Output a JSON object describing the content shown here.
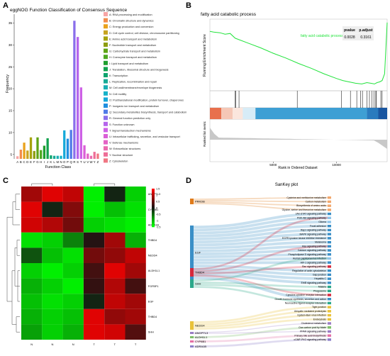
{
  "panels": {
    "A": {
      "letter": "A",
      "title": "eggNOG Function Classification of Consensus Sequence",
      "xlabel": "Function Class",
      "ylabel": "Frequency"
    },
    "B": {
      "letter": "B",
      "title": "fatty acid catabolic process",
      "ylabel_top": "Running Enrichment Score",
      "ylabel_bottom": "Ranked list metric",
      "xlabel": "Rank in Ordered Dataset",
      "legend_label": "fatty acid catabolic process",
      "table_header": [
        "pvalue",
        "p.adjust"
      ],
      "table_values": [
        "0.0028",
        "0.3161"
      ]
    },
    "C": {
      "letter": "C"
    },
    "D": {
      "letter": "D",
      "title": "SanKey plot"
    }
  },
  "chart_data": [
    {
      "panel": "A",
      "type": "bar",
      "title": "eggNOG Function Classification of Consensus Sequence",
      "xlabel": "Function Class",
      "ylabel": "Frequency",
      "ylim": [
        4,
        37
      ],
      "yticks": [
        5,
        10,
        15,
        20,
        25,
        30,
        35
      ],
      "categories": [
        "A",
        "B",
        "C",
        "D",
        "E",
        "F",
        "G",
        "H",
        "I",
        "J",
        "K",
        "L",
        "M",
        "N",
        "O",
        "P",
        "Q",
        "R",
        "S",
        "T",
        "U",
        "V",
        "W",
        "Y",
        "Z"
      ],
      "values": [
        4.6,
        6.1,
        7.7,
        5.9,
        8.9,
        5.8,
        8.9,
        6.0,
        7.0,
        8.7,
        4.8,
        4.7,
        4.7,
        4.7,
        10.5,
        8.6,
        10.6,
        35.5,
        31.8,
        20.3,
        7.1,
        5.2,
        4.7,
        5.6,
        5.2
      ],
      "colors": [
        "#F7A5A5",
        "#F28C4B",
        "#E9A21C",
        "#C7A420",
        "#A6A30D",
        "#8E9D10",
        "#5FA415",
        "#4EA821",
        "#1E9E2E",
        "#12A24E",
        "#0EA46E",
        "#17AA95",
        "#19AFB3",
        "#17B2C9",
        "#16A9D9",
        "#1F8FE0",
        "#4F7BE7",
        "#8A6FEB",
        "#B565EC",
        "#CE60E6",
        "#DA5FD7",
        "#E463C6",
        "#EA6AAE",
        "#EE6E97",
        "#F07683"
      ],
      "legend": [
        {
          "letter": "A",
          "label": "A: RNA processing and modification"
        },
        {
          "letter": "B",
          "label": "B: Chromatin structure and dynamics"
        },
        {
          "letter": "C",
          "label": "C: Energy production and conversion"
        },
        {
          "letter": "D",
          "label": "D: Cell cycle control, cell division, chromosome partitioning"
        },
        {
          "letter": "E",
          "label": "E: Amino acid transport and metabolism"
        },
        {
          "letter": "F",
          "label": "F: Nucleotide transport and metabolism"
        },
        {
          "letter": "G",
          "label": "G: Carbohydrate transport and metabolism"
        },
        {
          "letter": "H",
          "label": "H: Coenzyme transport and metabolism"
        },
        {
          "letter": "I",
          "label": "I: Lipid transport and metabolism"
        },
        {
          "letter": "J",
          "label": "J: Translation, ribosomal structure and biogenesis"
        },
        {
          "letter": "K",
          "label": "K: Transcription"
        },
        {
          "letter": "L",
          "label": "L: Replication, recombination and repair"
        },
        {
          "letter": "M",
          "label": "M: Cell wall/membrane/envelope biogenesis"
        },
        {
          "letter": "N",
          "label": "N: Cell motility"
        },
        {
          "letter": "O",
          "label": "O: Posttranslational modification, protein turnover, chaperones"
        },
        {
          "letter": "P",
          "label": "P: Inorganic ion transport and metabolism"
        },
        {
          "letter": "Q",
          "label": "Q: Secondary metabolites biosynthesis, transport and catabolism"
        },
        {
          "letter": "R",
          "label": "R: General function prediction only"
        },
        {
          "letter": "S",
          "label": "S: Function unknown"
        },
        {
          "letter": "T",
          "label": "T: Signal transduction mechanisms"
        },
        {
          "letter": "U",
          "label": "U: Intracellular trafficking, secretion, and vesicular transport"
        },
        {
          "letter": "V",
          "label": "V: Defense mechanisms"
        },
        {
          "letter": "W",
          "label": "W: Extracellular structures"
        },
        {
          "letter": "Y",
          "label": "Y: Nuclear structure"
        },
        {
          "letter": "Z",
          "label": "Z: Cytoskeleton"
        }
      ]
    },
    {
      "panel": "B",
      "type": "line",
      "title": "fatty acid catabolic process",
      "xlabel": "Rank in Ordered Dataset",
      "ylabel": "Running Enrichment Score",
      "xlim": [
        0,
        14000
      ],
      "xticks": [
        5000,
        10000
      ],
      "series": [
        {
          "name": "fatty acid catabolic process",
          "color": "#22E33C",
          "x": [
            0,
            300,
            800,
            1200,
            1600,
            2000,
            3000,
            4000,
            5000,
            6000,
            7000,
            8000,
            9000,
            10000,
            10500,
            11000,
            11500,
            12000,
            12400,
            12700,
            13000,
            13200,
            13400,
            13600,
            13800,
            14000
          ],
          "y": [
            0.02,
            0.01,
            0.0,
            -0.02,
            -0.01,
            -0.08,
            -0.15,
            -0.22,
            -0.3,
            -0.37,
            -0.45,
            -0.52,
            -0.6,
            -0.67,
            -0.7,
            -0.72,
            -0.74,
            -0.75,
            -0.73,
            -0.74,
            -0.75,
            -0.73,
            -0.72,
            -0.7,
            -0.6,
            0.15
          ]
        }
      ],
      "hit_ranks": [
        2000,
        2050,
        2300,
        6900,
        10400,
        11100,
        11600,
        11900,
        12050,
        12400,
        12600,
        12800,
        12950,
        13100,
        13150,
        13500,
        13600
      ]
    },
    {
      "panel": "C",
      "type": "heatmap",
      "rows": [
        "ANGPTL3",
        "CYP8B1",
        "ADRA1B",
        "THBD4",
        "NEDD4",
        "ALDH1L1",
        "FGFBP1",
        "EGF",
        "THBD4",
        "SHH"
      ],
      "columns": [
        "N",
        "N",
        "N",
        "T",
        "T",
        "T"
      ],
      "scale": [
        -1.5,
        1.5
      ],
      "scale_ticks": [
        "1.5",
        "1",
        "0.5",
        "0",
        "-0.5",
        "-1",
        "-1.5"
      ],
      "values": [
        [
          0.9,
          1.3,
          1.1,
          -1.4,
          -0.1,
          -1.2
        ],
        [
          1.3,
          -0.1,
          0.7,
          -1.4,
          -1.1,
          -1.3
        ],
        [
          1.2,
          1.0,
          0.6,
          -1.2,
          -1.3,
          -1.4
        ],
        [
          -1.3,
          -1.2,
          -0.7,
          0.1,
          0.9,
          -1.0
        ],
        [
          -0.4,
          -1.1,
          -1.3,
          0.6,
          0.8,
          1.1
        ],
        [
          -1.2,
          -1.4,
          -1.2,
          0.3,
          1.3,
          0.9
        ],
        [
          -1.0,
          -1.2,
          -1.4,
          0.2,
          1.0,
          0.3
        ],
        [
          -1.1,
          -1.3,
          -1.2,
          -0.1,
          1.1,
          0.9
        ],
        [
          -1.0,
          -1.2,
          -1.1,
          1.3,
          0.8,
          0.9
        ],
        [
          -0.9,
          -1.2,
          -1.0,
          1.3,
          1.2,
          0.4
        ]
      ]
    },
    {
      "panel": "D",
      "type": "sankey",
      "title": "SanKey plot",
      "sources": [
        {
          "name": "PRKDB",
          "color": "#E07B1A"
        },
        {
          "name": "EGF",
          "color": "#3A8FC7"
        },
        {
          "name": "THBD4",
          "color": "#D6283C"
        },
        {
          "name": "SHH",
          "color": "#2BA88A"
        },
        {
          "name": "NEDD4",
          "color": "#E9C23A"
        },
        {
          "name": "ANGPTL3",
          "color": "#9A7DC4"
        },
        {
          "name": "ALDH1L1",
          "color": "#7FBF6A"
        },
        {
          "name": "CYP8B1",
          "color": "#E46FA5"
        },
        {
          "name": "ADRA1B",
          "color": "#8C7FC8"
        }
      ],
      "targets": [
        "Cysteine and methionine metabolism",
        "Carbon metabolism",
        "Biosynthesis of amino acids",
        "Glycine, serine and threonine metabolism",
        "JAK-STAT signaling pathway",
        "PI3K-Akt signaling pathway",
        "Glioma",
        "Focal adhesion",
        "Rap1 signaling pathway",
        "MAPK signaling pathway",
        "EGFR tyrosine kinase inhibitor resistance",
        "Melanoma",
        "Ras signaling pathway",
        "Calcium signaling pathway",
        "Phospholipase D signaling pathway",
        "Human papillomavirus infection",
        "HIF-1 signaling pathway",
        "Rac signaling pathway",
        "Regulation of actin cytoskeleton",
        "Gap junction",
        "Hepatitis C",
        "ErbB signaling pathway",
        "Malaria",
        "Phagosome",
        "Cytokine-cytokine receptor interaction",
        "Growth hormone synthesis, secretion and action",
        "Neuroactive ligand-receptor interaction",
        "Tight junction",
        "Ubiquitin mediated proteolysis",
        "Epstein-Barr virus infection",
        "Endocytosis",
        "Cholesterol metabolism",
        "One carbon pool by folate",
        "PPAR signaling pathway",
        "Primary bile acid biosynthesis",
        "cGMP-PKG signaling pathway"
      ],
      "target_colors": [
        "#F2A86E",
        "#F2A86E",
        "#F2A86E",
        "#F2A86E",
        "#3A8FC7",
        "#8EC3E8",
        "#8EC3E8",
        "#3A8FC7",
        "#3A8FC7",
        "#3A8FC7",
        "#3A8FC7",
        "#3A8FC7",
        "#3A8FC7",
        "#3A8FC7",
        "#3A8FC7",
        "#8EC3E8",
        "#3A8FC7",
        "#D6283C",
        "#3A8FC7",
        "#3A8FC7",
        "#3A8FC7",
        "#3A8FC7",
        "#2BA88A",
        "#2BA88A",
        "#D6283C",
        "#3A8FC7",
        "#2BA88A",
        "#E9C23A",
        "#E9C23A",
        "#E9C23A",
        "#E9C23A",
        "#9A7DC4",
        "#7FBF6A",
        "#9A7DC4",
        "#E46FA5",
        "#8C7FC8"
      ],
      "links": [
        [
          0,
          0
        ],
        [
          0,
          1
        ],
        [
          0,
          2
        ],
        [
          0,
          3
        ],
        [
          1,
          4
        ],
        [
          1,
          5
        ],
        [
          1,
          6
        ],
        [
          1,
          7
        ],
        [
          1,
          8
        ],
        [
          1,
          9
        ],
        [
          1,
          10
        ],
        [
          1,
          11
        ],
        [
          1,
          12
        ],
        [
          1,
          13
        ],
        [
          1,
          14
        ],
        [
          1,
          15
        ],
        [
          1,
          16
        ],
        [
          1,
          18
        ],
        [
          1,
          19
        ],
        [
          1,
          20
        ],
        [
          1,
          21
        ],
        [
          1,
          25
        ],
        [
          2,
          5
        ],
        [
          2,
          12
        ],
        [
          2,
          17
        ],
        [
          2,
          24
        ],
        [
          3,
          15
        ],
        [
          3,
          22
        ],
        [
          3,
          23
        ],
        [
          3,
          26
        ],
        [
          4,
          27
        ],
        [
          4,
          28
        ],
        [
          4,
          29
        ],
        [
          4,
          30
        ],
        [
          5,
          31
        ],
        [
          6,
          32
        ],
        [
          5,
          33
        ],
        [
          7,
          34
        ],
        [
          8,
          35
        ]
      ]
    }
  ]
}
